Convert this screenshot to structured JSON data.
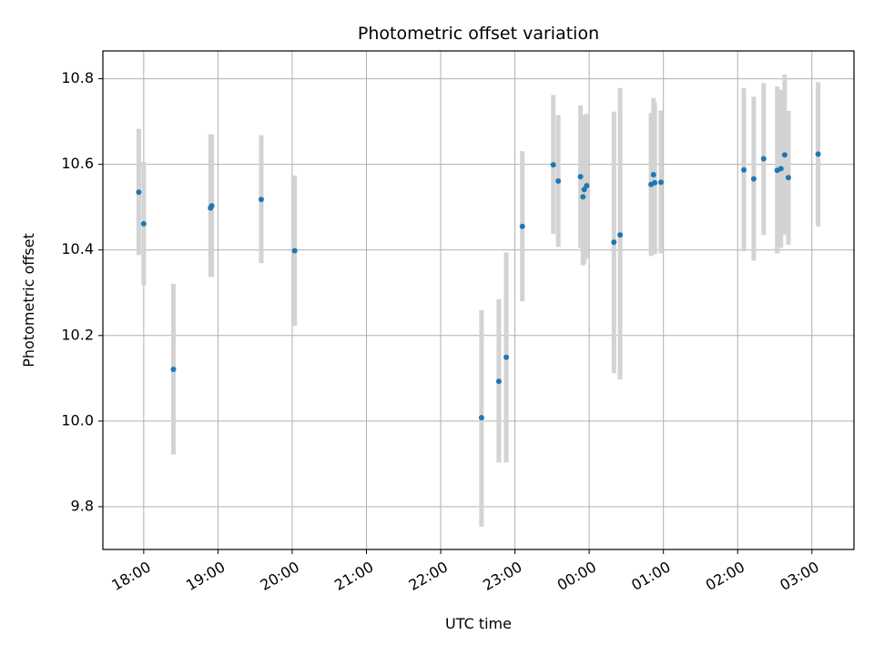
{
  "chart_data": {
    "type": "scatter",
    "title": "Photometric offset variation",
    "xlabel": "UTC time",
    "ylabel": "Photometric offset",
    "x_axis_type": "time",
    "xlim": [
      "17:27",
      "03:34"
    ],
    "ylim": [
      9.7,
      10.865
    ],
    "x_ticks": [
      "18:00",
      "19:00",
      "20:00",
      "21:00",
      "22:00",
      "23:00",
      "00:00",
      "01:00",
      "02:00",
      "03:00"
    ],
    "y_ticks": [
      9.8,
      10.0,
      10.2,
      10.4,
      10.6,
      10.8
    ],
    "y_tick_labels": [
      "9.8",
      "10.0",
      "10.2",
      "10.4",
      "10.6",
      "10.8"
    ],
    "grid": true,
    "colors": {
      "points": "#1f77b4",
      "errorbars": "#d3d3d3",
      "grid": "#b0b0b0"
    },
    "points": [
      {
        "t": "17:56",
        "y": 10.535,
        "low": 10.388,
        "high": 10.683
      },
      {
        "t": "18:00",
        "y": 10.461,
        "low": 10.317,
        "high": 10.606
      },
      {
        "t": "18:24",
        "y": 10.121,
        "low": 9.922,
        "high": 10.321
      },
      {
        "t": "18:54",
        "y": 10.498,
        "low": 10.337,
        "high": 10.67
      },
      {
        "t": "18:55",
        "y": 10.503,
        "low": 10.337,
        "high": 10.67
      },
      {
        "t": "19:35",
        "y": 10.518,
        "low": 10.369,
        "high": 10.668
      },
      {
        "t": "20:02",
        "y": 10.398,
        "low": 10.223,
        "high": 10.574
      },
      {
        "t": "22:33",
        "y": 10.008,
        "low": 9.753,
        "high": 10.259
      },
      {
        "t": "22:47",
        "y": 10.093,
        "low": 9.903,
        "high": 10.285
      },
      {
        "t": "22:53",
        "y": 10.149,
        "low": 9.903,
        "high": 10.394
      },
      {
        "t": "23:06",
        "y": 10.455,
        "low": 10.28,
        "high": 10.631
      },
      {
        "t": "23:31",
        "y": 10.599,
        "low": 10.438,
        "high": 10.762
      },
      {
        "t": "23:35",
        "y": 10.561,
        "low": 10.407,
        "high": 10.715
      },
      {
        "t": "23:53",
        "y": 10.571,
        "low": 10.405,
        "high": 10.738
      },
      {
        "t": "23:55",
        "y": 10.524,
        "low": 10.364,
        "high": 10.688
      },
      {
        "t": "23:56",
        "y": 10.541,
        "low": 10.368,
        "high": 10.715
      },
      {
        "t": "23:58",
        "y": 10.55,
        "low": 10.38,
        "high": 10.718
      },
      {
        "t": "00:20",
        "y": 10.418,
        "low": 10.112,
        "high": 10.723
      },
      {
        "t": "00:25",
        "y": 10.435,
        "low": 10.097,
        "high": 10.778
      },
      {
        "t": "00:50",
        "y": 10.553,
        "low": 10.386,
        "high": 10.72
      },
      {
        "t": "00:52",
        "y": 10.576,
        "low": 10.395,
        "high": 10.755
      },
      {
        "t": "00:53",
        "y": 10.557,
        "low": 10.39,
        "high": 10.744
      },
      {
        "t": "00:58",
        "y": 10.558,
        "low": 10.392,
        "high": 10.726
      },
      {
        "t": "02:05",
        "y": 10.587,
        "low": 10.397,
        "high": 10.778
      },
      {
        "t": "02:13",
        "y": 10.566,
        "low": 10.375,
        "high": 10.758
      },
      {
        "t": "02:21",
        "y": 10.613,
        "low": 10.435,
        "high": 10.79
      },
      {
        "t": "02:32",
        "y": 10.586,
        "low": 10.392,
        "high": 10.782
      },
      {
        "t": "02:35",
        "y": 10.59,
        "low": 10.405,
        "high": 10.774
      },
      {
        "t": "02:38",
        "y": 10.622,
        "low": 10.435,
        "high": 10.81
      },
      {
        "t": "02:41",
        "y": 10.569,
        "low": 10.412,
        "high": 10.725
      },
      {
        "t": "03:05",
        "y": 10.624,
        "low": 10.455,
        "high": 10.792
      }
    ]
  }
}
